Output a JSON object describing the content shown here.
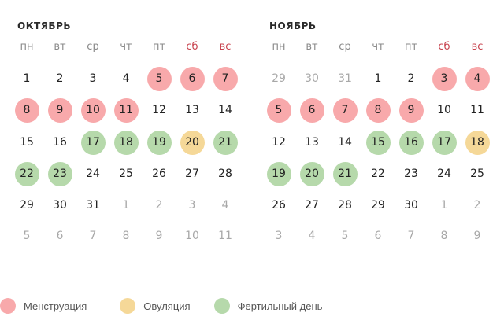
{
  "colors": {
    "menstruation": "#f8a9ab",
    "ovulation": "#f5d898",
    "fertile": "#b6d9ab",
    "weekend_header": "#c8444f"
  },
  "weekdays": [
    "пн",
    "вт",
    "ср",
    "чт",
    "пт",
    "сб",
    "вс"
  ],
  "months": [
    {
      "title": "ОКТЯБРЬ",
      "weeks": [
        [
          {
            "d": "1"
          },
          {
            "d": "2"
          },
          {
            "d": "3"
          },
          {
            "d": "4"
          },
          {
            "d": "5",
            "t": "menstruation"
          },
          {
            "d": "6",
            "t": "menstruation"
          },
          {
            "d": "7",
            "t": "menstruation"
          }
        ],
        [
          {
            "d": "8",
            "t": "menstruation"
          },
          {
            "d": "9",
            "t": "menstruation"
          },
          {
            "d": "10",
            "t": "menstruation"
          },
          {
            "d": "11",
            "t": "menstruation"
          },
          {
            "d": "12"
          },
          {
            "d": "13"
          },
          {
            "d": "14"
          }
        ],
        [
          {
            "d": "15"
          },
          {
            "d": "16"
          },
          {
            "d": "17",
            "t": "fertile"
          },
          {
            "d": "18",
            "t": "fertile"
          },
          {
            "d": "19",
            "t": "fertile"
          },
          {
            "d": "20",
            "t": "ovulation"
          },
          {
            "d": "21",
            "t": "fertile"
          }
        ],
        [
          {
            "d": "22",
            "t": "fertile"
          },
          {
            "d": "23",
            "t": "fertile"
          },
          {
            "d": "24"
          },
          {
            "d": "25"
          },
          {
            "d": "26"
          },
          {
            "d": "27"
          },
          {
            "d": "28"
          }
        ],
        [
          {
            "d": "29"
          },
          {
            "d": "30"
          },
          {
            "d": "31"
          },
          {
            "d": "1",
            "o": true
          },
          {
            "d": "2",
            "o": true
          },
          {
            "d": "3",
            "o": true
          },
          {
            "d": "4",
            "o": true
          }
        ],
        [
          {
            "d": "5",
            "o": true
          },
          {
            "d": "6",
            "o": true
          },
          {
            "d": "7",
            "o": true
          },
          {
            "d": "8",
            "o": true
          },
          {
            "d": "9",
            "o": true
          },
          {
            "d": "10",
            "o": true
          },
          {
            "d": "11",
            "o": true
          }
        ]
      ]
    },
    {
      "title": "НОЯБРЬ",
      "weeks": [
        [
          {
            "d": "29",
            "o": true
          },
          {
            "d": "30",
            "o": true
          },
          {
            "d": "31",
            "o": true
          },
          {
            "d": "1"
          },
          {
            "d": "2"
          },
          {
            "d": "3",
            "t": "menstruation"
          },
          {
            "d": "4",
            "t": "menstruation"
          }
        ],
        [
          {
            "d": "5",
            "t": "menstruation"
          },
          {
            "d": "6",
            "t": "menstruation"
          },
          {
            "d": "7",
            "t": "menstruation"
          },
          {
            "d": "8",
            "t": "menstruation"
          },
          {
            "d": "9",
            "t": "menstruation"
          },
          {
            "d": "10"
          },
          {
            "d": "11"
          }
        ],
        [
          {
            "d": "12"
          },
          {
            "d": "13"
          },
          {
            "d": "14"
          },
          {
            "d": "15",
            "t": "fertile"
          },
          {
            "d": "16",
            "t": "fertile"
          },
          {
            "d": "17",
            "t": "fertile"
          },
          {
            "d": "18",
            "t": "ovulation"
          }
        ],
        [
          {
            "d": "19",
            "t": "fertile"
          },
          {
            "d": "20",
            "t": "fertile"
          },
          {
            "d": "21",
            "t": "fertile"
          },
          {
            "d": "22"
          },
          {
            "d": "23"
          },
          {
            "d": "24"
          },
          {
            "d": "25"
          }
        ],
        [
          {
            "d": "26"
          },
          {
            "d": "27"
          },
          {
            "d": "28"
          },
          {
            "d": "29"
          },
          {
            "d": "30"
          },
          {
            "d": "1",
            "o": true
          },
          {
            "d": "2",
            "o": true
          }
        ],
        [
          {
            "d": "3",
            "o": true
          },
          {
            "d": "4",
            "o": true
          },
          {
            "d": "5",
            "o": true
          },
          {
            "d": "6",
            "o": true
          },
          {
            "d": "7",
            "o": true
          },
          {
            "d": "8",
            "o": true
          },
          {
            "d": "9",
            "o": true
          }
        ]
      ]
    }
  ],
  "legend": [
    {
      "key": "menstruation",
      "label": "Менструация"
    },
    {
      "key": "ovulation",
      "label": "Овуляция"
    },
    {
      "key": "fertile",
      "label": "Фертильный день"
    }
  ]
}
